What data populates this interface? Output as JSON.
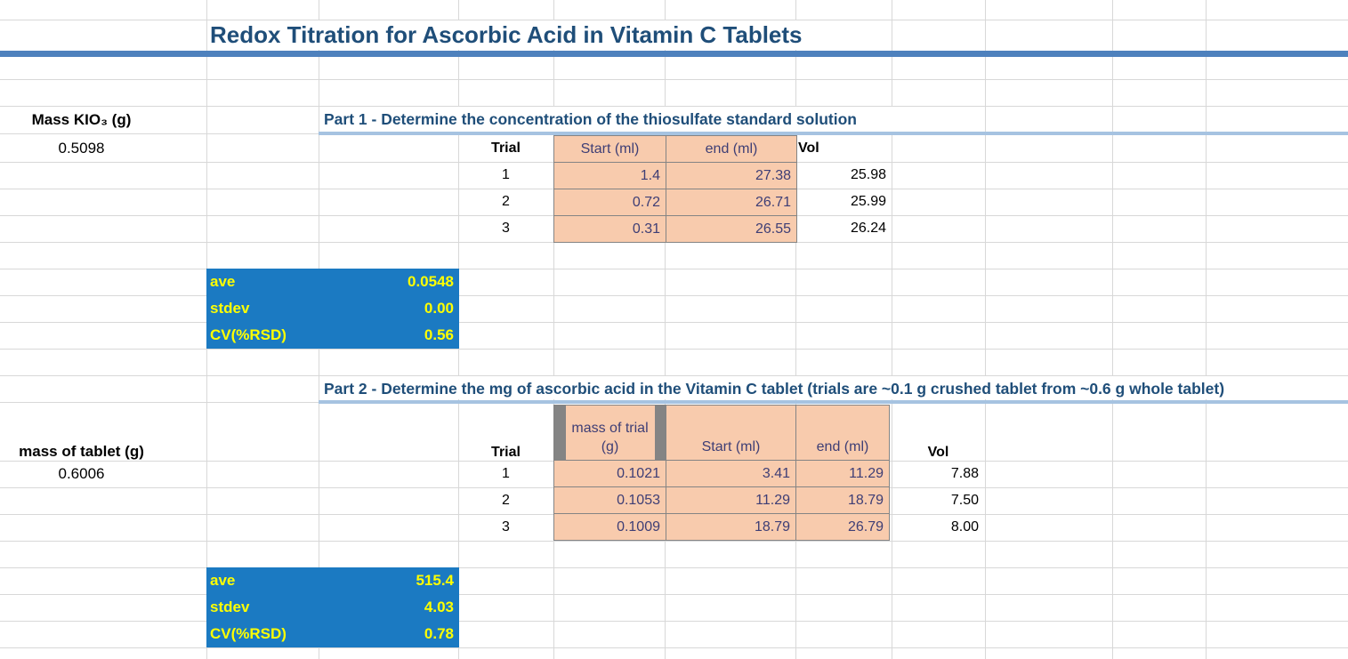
{
  "sheet": {
    "title": "Redox Titration for Ascorbic Acid in Vitamin C Tablets",
    "left_panel": {
      "kio3_label": "Mass KIO₃ (g)",
      "kio3_value": "0.5098",
      "tablet_label": "mass of tablet (g)",
      "tablet_value": "0.6006"
    },
    "part1": {
      "heading": "Part 1 - Determine the concentration of the thiosulfate standard solution",
      "table": {
        "headers": {
          "trial": "Trial",
          "start": "Start (ml)",
          "end": "end (ml)",
          "vol": "Vol"
        },
        "rows": [
          {
            "trial": "1",
            "start": "1.4",
            "end": "27.38",
            "vol": "25.98"
          },
          {
            "trial": "2",
            "start": "0.72",
            "end": "26.71",
            "vol": "25.99"
          },
          {
            "trial": "3",
            "start": "0.31",
            "end": "26.55",
            "vol": "26.24"
          }
        ]
      },
      "stats": {
        "ave_label": "ave",
        "ave_value": "0.0548",
        "stdev_label": "stdev",
        "stdev_value": "0.00",
        "cv_label": "CV(%RSD)",
        "cv_value": "0.56"
      }
    },
    "part2": {
      "heading": "Part 2 - Determine the mg of ascorbic acid in the Vitamin C tablet (trials are ~0.1 g crushed tablet from ~0.6 g whole tablet)",
      "table": {
        "headers": {
          "trial": "Trial",
          "mass": "mass of trial (g)",
          "start": "Start (ml)",
          "end": "end (ml)",
          "vol": "Vol"
        },
        "rows": [
          {
            "trial": "1",
            "mass": "0.1021",
            "start": "3.41",
            "end": "11.29",
            "vol": "7.88"
          },
          {
            "trial": "2",
            "mass": "0.1053",
            "start": "11.29",
            "end": "18.79",
            "vol": "7.50"
          },
          {
            "trial": "3",
            "mass": "0.1009",
            "start": "18.79",
            "end": "26.79",
            "vol": "8.00"
          }
        ]
      },
      "stats": {
        "ave_label": "ave",
        "ave_value": "515.4",
        "stdev_label": "stdev",
        "stdev_value": "4.03",
        "cv_label": "CV(%RSD)",
        "cv_value": "0.78"
      }
    },
    "colors": {
      "title_text": "#1f4e79",
      "title_bar": "#4e81bd",
      "heading_underline": "#a6c3e1",
      "input_cell_fill": "#f8cbad",
      "input_cell_text": "#3e3e75",
      "stats_fill": "#1b7ac2",
      "stats_text": "#ffff00",
      "gridline": "#d8d8d8"
    }
  }
}
